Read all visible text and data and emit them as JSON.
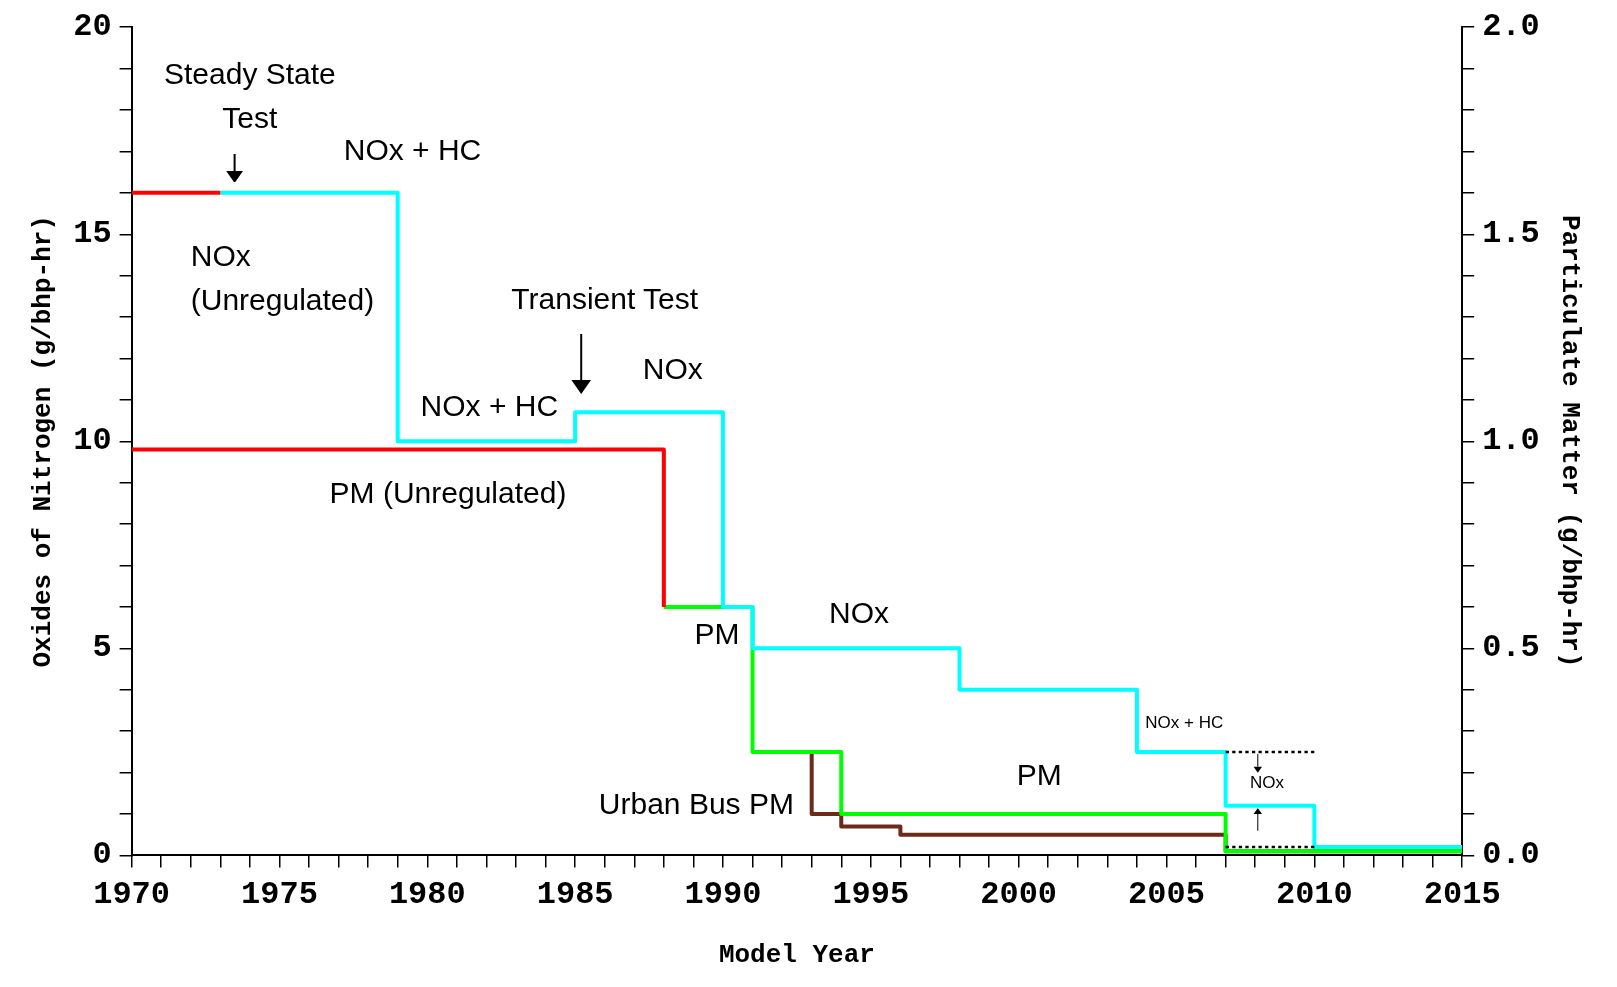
{
  "chart_data": {
    "type": "step",
    "xlabel": "Model Year",
    "ylabel": "Oxides of Nitrogen (g/bhp-hr)",
    "y2label": "Particulate Matter (g/bhp-hr)",
    "xlim": [
      1970,
      2015
    ],
    "xticks": [
      1970,
      {
        "value": 1971,
        "label": null
      },
      {
        "value": 1972,
        "label": null
      },
      {
        "value": 1973,
        "label": null
      },
      {
        "value": 1974,
        "label": null
      },
      1975,
      {
        "value": 1976,
        "label": null
      },
      {
        "value": 1977,
        "label": null
      },
      {
        "value": 1978,
        "label": null
      },
      {
        "value": 1979,
        "label": null
      },
      1980,
      {
        "value": 1981,
        "label": null
      },
      {
        "value": 1982,
        "label": null
      },
      {
        "value": 1983,
        "label": null
      },
      {
        "value": 1984,
        "label": null
      },
      1985,
      {
        "value": 1986,
        "label": null
      },
      {
        "value": 1987,
        "label": null
      },
      {
        "value": 1988,
        "label": null
      },
      {
        "value": 1989,
        "label": null
      },
      1990,
      {
        "value": 1991,
        "label": null
      },
      {
        "value": 1992,
        "label": null
      },
      {
        "value": 1993,
        "label": null
      },
      {
        "value": 1994,
        "label": null
      },
      1995,
      {
        "value": 1996,
        "label": null
      },
      {
        "value": 1997,
        "label": null
      },
      {
        "value": 1998,
        "label": null
      },
      {
        "value": 1999,
        "label": null
      },
      2000,
      {
        "value": 2001,
        "label": null
      },
      {
        "value": 2002,
        "label": null
      },
      {
        "value": 2003,
        "label": null
      },
      {
        "value": 2004,
        "label": null
      },
      2005,
      {
        "value": 2006,
        "label": null
      },
      {
        "value": 2007,
        "label": null
      },
      {
        "value": 2008,
        "label": null
      },
      {
        "value": 2009,
        "label": null
      },
      2010,
      {
        "value": 2011,
        "label": null
      },
      {
        "value": 2012,
        "label": null
      },
      {
        "value": 2013,
        "label": null
      },
      {
        "value": 2014,
        "label": null
      },
      2015
    ],
    "ylim": [
      0,
      20
    ],
    "yticks": [
      0,
      {
        "value": 1,
        "label": null
      },
      {
        "value": 2,
        "label": null
      },
      {
        "value": 3,
        "label": null
      },
      {
        "value": 4,
        "label": null
      },
      5,
      {
        "value": 6,
        "label": null
      },
      {
        "value": 7,
        "label": null
      },
      {
        "value": 8,
        "label": null
      },
      {
        "value": 9,
        "label": null
      },
      10,
      {
        "value": 11,
        "label": null
      },
      {
        "value": 12,
        "label": null
      },
      {
        "value": 13,
        "label": null
      },
      {
        "value": 14,
        "label": null
      },
      15,
      {
        "value": 16,
        "label": null
      },
      {
        "value": 17,
        "label": null
      },
      {
        "value": 18,
        "label": null
      },
      {
        "value": 19,
        "label": null
      },
      20
    ],
    "y2lim": [
      0,
      2
    ],
    "y2ticks": [
      {
        "value": 0,
        "label": "0.0"
      },
      {
        "value": 0.1,
        "label": null
      },
      {
        "value": 0.2,
        "label": null
      },
      {
        "value": 0.3,
        "label": null
      },
      {
        "value": 0.4,
        "label": null
      },
      {
        "value": 0.5,
        "label": "0.5"
      },
      {
        "value": 0.6,
        "label": null
      },
      {
        "value": 0.7,
        "label": null
      },
      {
        "value": 0.8,
        "label": null
      },
      {
        "value": 0.9,
        "label": null
      },
      {
        "value": 1,
        "label": "1.0"
      },
      {
        "value": 1.1,
        "label": null
      },
      {
        "value": 1.2,
        "label": null
      },
      {
        "value": 1.3,
        "label": null
      },
      {
        "value": 1.4,
        "label": null
      },
      {
        "value": 1.5,
        "label": "1.5"
      },
      {
        "value": 1.6,
        "label": null
      },
      {
        "value": 1.7,
        "label": null
      },
      {
        "value": 1.8,
        "label": null
      },
      {
        "value": 1.9,
        "label": null
      },
      {
        "value": 2,
        "label": "2.0"
      }
    ],
    "grid": false,
    "legend": false,
    "series": [
      {
        "axis": "y",
        "color": "#ff0000",
        "x": [
          1970,
          1973
        ],
        "values": [
          16,
          16
        ]
      },
      {
        "axis": "y",
        "color": "#00ffff",
        "x": [
          1973,
          1979,
          1985,
          1990,
          1991,
          1998,
          2004,
          2007,
          2010,
          2015
        ],
        "values": [
          16,
          10,
          10.7,
          6,
          5,
          4,
          2.5,
          1.2,
          0.2,
          0.2
        ]
      },
      {
        "axis": "y2",
        "color": "#ff0000",
        "x": [
          1970,
          1988
        ],
        "values": [
          0.98,
          0.6
        ]
      },
      {
        "axis": "y2",
        "color": "#00ff00",
        "x": [
          1988,
          1991,
          1994,
          2007,
          2015
        ],
        "values": [
          0.6,
          0.25,
          0.1,
          0.01,
          0.01
        ]
      },
      {
        "axis": "y2",
        "color": "#6b2a1a",
        "x": [
          1993,
          1993,
          1994,
          1996,
          2007,
          2015
        ],
        "values": [
          0.25,
          0.1,
          0.07,
          0.05,
          0.01,
          0.01
        ]
      },
      {
        "type": "line",
        "axis": "y",
        "color": "#000000",
        "line_style": "dotted",
        "x": [
          2007,
          2010
        ],
        "values": [
          2.5,
          2.5
        ]
      },
      {
        "type": "line",
        "axis": "y",
        "color": "#000000",
        "line_style": "dotted",
        "x": [
          2007,
          2010
        ],
        "values": [
          0.2,
          0.2
        ]
      }
    ],
    "annotations": [
      "Steady State Test",
      "NOx + HC",
      "NOx (Unregulated)",
      "Transient Test",
      "NOx",
      "NOx + HC",
      "PM (Unregulated)",
      "PM",
      "NOx",
      "Urban Bus PM",
      "PM",
      "NOx + HC",
      "NOx"
    ]
  }
}
